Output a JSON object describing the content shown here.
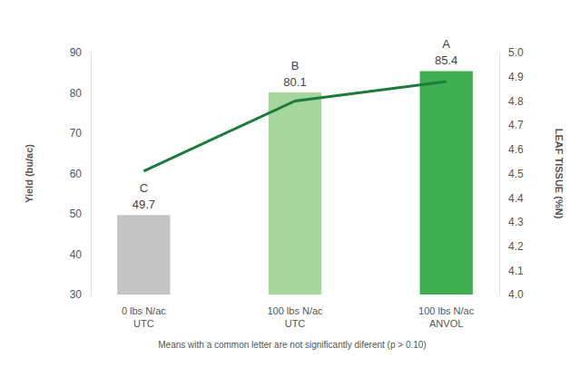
{
  "chart_data": {
    "type": "bar",
    "y_label": "Yield (bu/ac)",
    "y2_label": "LEAF TISSUE (%N)",
    "note": "Means with a common letter are not significantly diferent (p > 0.10)",
    "categories": [
      "0 lbs N/ac\nUTC",
      "100 lbs N/ac\nUTC",
      "100 lbs N/ac\nANVOL"
    ],
    "series": [
      {
        "type": "bar",
        "values": [
          49.7,
          80.1,
          85.4
        ],
        "colors": [
          "#c4c4c4",
          "#a6d69c",
          "#3fae4e"
        ],
        "data_labels": true,
        "annotations": [
          "C",
          "B",
          "A"
        ]
      },
      {
        "type": "line",
        "values": [
          4.51,
          4.8,
          4.88
        ],
        "color": "#1e7a3c",
        "axis": "y2"
      }
    ],
    "ylim": [
      30,
      90
    ],
    "yticks": [
      30,
      40,
      50,
      60,
      70,
      80,
      90
    ],
    "y2lim": [
      4,
      5
    ],
    "y2ticks": [
      {
        "value": 4,
        "label": "4.0"
      },
      4.1,
      4.2,
      4.3,
      4.4,
      4.5,
      4.6,
      4.7,
      4.8,
      4.9,
      {
        "value": 5,
        "label": "5.0"
      }
    ],
    "grid": false
  }
}
